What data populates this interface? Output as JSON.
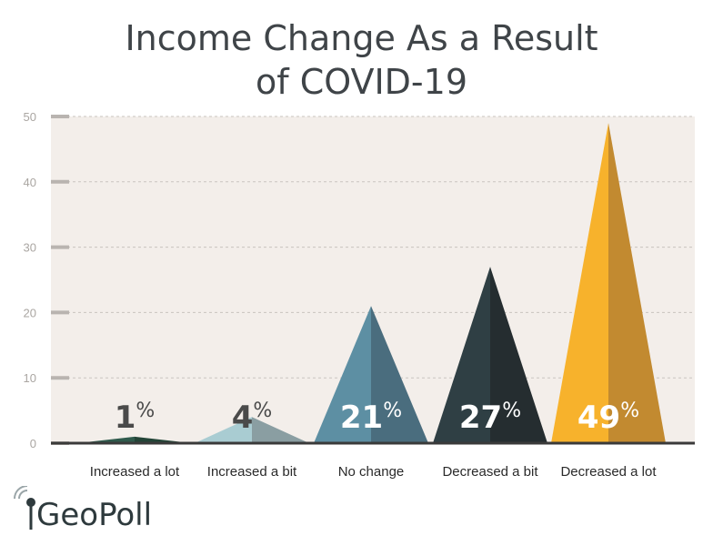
{
  "chart_data": {
    "type": "bar",
    "title": [
      "Income Change As a Result",
      "of COVID-19"
    ],
    "categories": [
      "Increased a lot",
      "Increased a bit",
      "No change",
      "Decreased a bit",
      "Decreased a lot"
    ],
    "values": [
      1,
      4,
      21,
      27,
      49
    ],
    "labels": [
      "1",
      "4",
      "21",
      "27",
      "49"
    ],
    "label_suffix": "%",
    "ylim": [
      0,
      50
    ],
    "yticks": [
      "0",
      "10",
      "20",
      "30",
      "40",
      "50"
    ],
    "grid": true,
    "colors": [
      {
        "light": "#2f5a4c",
        "dark": "#234437"
      },
      {
        "light": "#a9ccd2",
        "dark": "#8a9ea2"
      },
      {
        "light": "#5d8fa3",
        "dark": "#4a6d7e"
      },
      {
        "light": "#2f3f44",
        "dark": "#252d30"
      },
      {
        "light": "#f7b22c",
        "dark": "#c28a30"
      }
    ],
    "label_colors": [
      "#4a4a4a",
      "#4a4a4a",
      "#ffffff",
      "#ffffff",
      "#ffffff"
    ]
  },
  "logo": {
    "text_g": "G",
    "text_rest": "eoPoll"
  },
  "colors": {
    "plot_bg": "#f3eeea",
    "grid": "#c9c4bf",
    "axis": "#3a3a3a",
    "tick": "#b9b4b0"
  }
}
